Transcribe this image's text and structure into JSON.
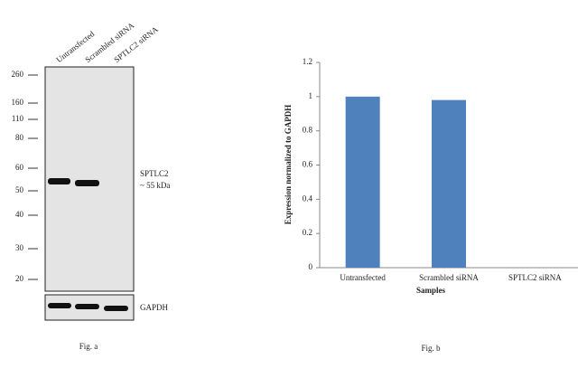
{
  "blot": {
    "lanes": [
      "Untransfected",
      "Scrambled siRNA",
      "SPTLC2 siRNA"
    ],
    "markers": [
      260,
      160,
      110,
      80,
      60,
      50,
      40,
      30,
      20
    ],
    "target": "SPTLC2",
    "target_size": "~ 55 kDa",
    "loading_control": "GAPDH",
    "caption": "Fig. a"
  },
  "chart_data": {
    "type": "bar",
    "categories": [
      "Untransfected",
      "Scrambled siRNA",
      "SPTLC2 siRNA"
    ],
    "values": [
      1,
      0.98,
      0
    ],
    "color": "#4f81bd",
    "ylim": [
      0,
      1.2
    ],
    "yticks": [
      0,
      0.2,
      0.4,
      0.6,
      0.8,
      1,
      1.2
    ],
    "xlabel": "Samples",
    "ylabel": "Expression normalized to GAPDH",
    "caption": "Fig. b"
  }
}
